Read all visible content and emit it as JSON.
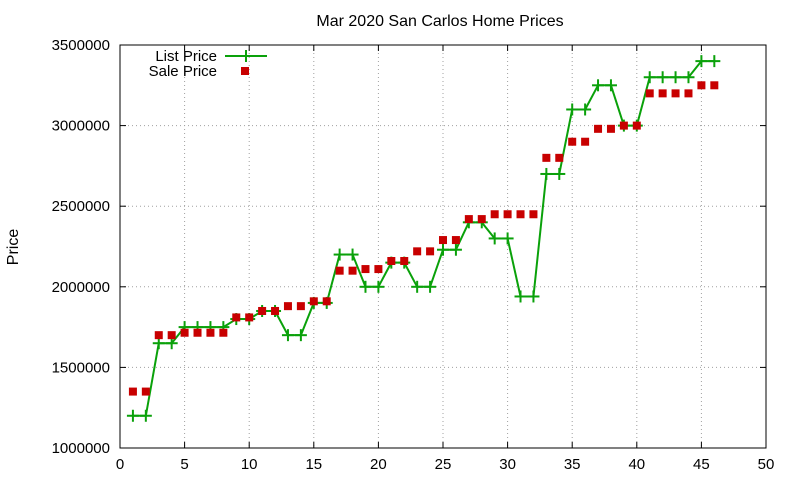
{
  "chart_data": {
    "type": "line",
    "title": "Mar 2020 San Carlos Home Prices",
    "xlabel": "",
    "ylabel": "Price",
    "xlim": [
      0,
      50
    ],
    "ylim": [
      1000000,
      3500000
    ],
    "x_ticks": [
      0,
      5,
      10,
      15,
      20,
      25,
      30,
      35,
      40,
      45,
      50
    ],
    "y_ticks": [
      1000000,
      1500000,
      2000000,
      2500000,
      3000000,
      3500000
    ],
    "grid": true,
    "legend_position": "top-left",
    "x": [
      1,
      2,
      3,
      4,
      5,
      6,
      7,
      8,
      9,
      10,
      11,
      12,
      13,
      14,
      15,
      16,
      17,
      18,
      19,
      20,
      21,
      22,
      23,
      24,
      25,
      26,
      27,
      28,
      29,
      30,
      31,
      32,
      33,
      34,
      35,
      36,
      37,
      38,
      39,
      40,
      41,
      42,
      43,
      44,
      45,
      46
    ],
    "series": [
      {
        "name": "List Price",
        "style": "lines+crosses",
        "color": "#0aa10a",
        "values": [
          1200000,
          1200000,
          1650000,
          1650000,
          1750000,
          1750000,
          1750000,
          1750000,
          1800000,
          1800000,
          1850000,
          1850000,
          1700000,
          1700000,
          1900000,
          1900000,
          2200000,
          2200000,
          2000000,
          2000000,
          2150000,
          2150000,
          2000000,
          2000000,
          2230000,
          2230000,
          2400000,
          2400000,
          2300000,
          2300000,
          1940000,
          1940000,
          2700000,
          2700000,
          3100000,
          3100000,
          3250000,
          3250000,
          3000000,
          3000000,
          3300000,
          3300000,
          3300000,
          3300000,
          3400000,
          3400000
        ]
      },
      {
        "name": "Sale Price",
        "style": "squares",
        "color": "#c80000",
        "values": [
          1350000,
          1350000,
          1700000,
          1700000,
          1715000,
          1715000,
          1715000,
          1715000,
          1810000,
          1810000,
          1850000,
          1850000,
          1880000,
          1880000,
          1910000,
          1910000,
          2100000,
          2100000,
          2110000,
          2110000,
          2160000,
          2160000,
          2220000,
          2220000,
          2290000,
          2290000,
          2420000,
          2420000,
          2450000,
          2450000,
          2450000,
          2450000,
          2800000,
          2800000,
          2900000,
          2900000,
          2980000,
          2980000,
          3000000,
          3000000,
          3200000,
          3200000,
          3200000,
          3200000,
          3250000,
          3250000
        ]
      }
    ]
  }
}
